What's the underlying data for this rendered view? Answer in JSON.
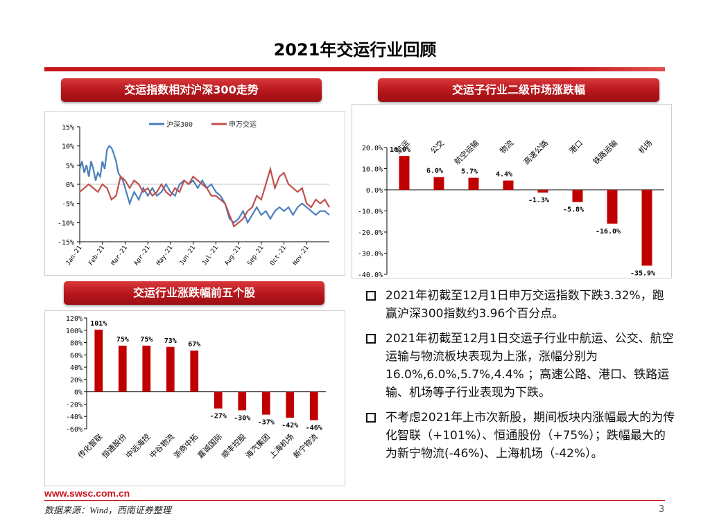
{
  "page": {
    "title": "2021年交运行业回顾",
    "footer_url": "www.swsc.com.cn",
    "footer_source": "数据来源：Wind，西南证券整理",
    "page_number": "3"
  },
  "sections": {
    "index_chart": "交运指数相对沪深300走势",
    "subindustry_chart": "交运子行业二级市场涨跌幅",
    "top_stocks_chart": "交运行业涨跌幅前五个股"
  },
  "bullets": [
    "2021年初截至12月1日申万交运指数下跌3.32%，跑赢沪深300指数约3.96个百分点。",
    "2021年初截至12月1日交运子行业中航运、公交、航空运输与物流板块表现为上涨，涨幅分别为16.0%,6.0%,5.7%,4.4% ；高速公路、港口、铁路运输、机场等子行业表现为下跌。",
    "不考虑2021年上市次新股，期间板块内涨幅最大的为传化智联（+101%）、恒通股份（+75%）；跌幅最大的为新宁物流(-46%)、上海机场（-42%）。"
  ],
  "colors": {
    "accent": "#c8161d",
    "bar": "#c00000",
    "series_hs300": "#4a7ebb",
    "series_sw": "#c0504d"
  },
  "chart_data": [
    {
      "id": "index",
      "type": "line",
      "title": "交运指数相对沪深300走势",
      "ylim": [
        -15,
        15
      ],
      "yticks": [
        15,
        10,
        5,
        0,
        -5,
        -10,
        -15
      ],
      "ytick_labels": [
        "15%",
        "10%",
        "5%",
        "0%",
        "-5%",
        "-10%",
        "-15%"
      ],
      "xtick_labels": [
        "Jan-21",
        "Feb-21",
        "Mar-21",
        "Apr-21",
        "May-21",
        "Jun-21",
        "Jul-21",
        "Aug-21",
        "Sep-21",
        "Oct-21",
        "Nov-21"
      ],
      "x_range": [
        0,
        11
      ],
      "legend_position": "top",
      "series": [
        {
          "name": "沪深300",
          "color": "#4a7ebb",
          "x": [
            0,
            0.1,
            0.2,
            0.3,
            0.4,
            0.5,
            0.6,
            0.7,
            0.8,
            0.9,
            1.0,
            1.1,
            1.2,
            1.3,
            1.4,
            1.5,
            1.6,
            1.7,
            1.8,
            1.9,
            2.0,
            2.1,
            2.2,
            2.4,
            2.6,
            2.8,
            3.0,
            3.2,
            3.4,
            3.6,
            3.8,
            4.0,
            4.2,
            4.4,
            4.6,
            4.8,
            5.0,
            5.2,
            5.4,
            5.6,
            5.8,
            6.0,
            6.2,
            6.4,
            6.6,
            6.8,
            7.0,
            7.2,
            7.4,
            7.6,
            7.8,
            8.0,
            8.2,
            8.4,
            8.6,
            8.8,
            9.0,
            9.2,
            9.4,
            9.6,
            9.8,
            10.0,
            10.2,
            10.4,
            10.6,
            10.8,
            11.0
          ],
          "y": [
            4,
            6,
            3,
            5,
            2,
            6,
            4,
            1,
            3,
            2,
            6,
            4,
            9,
            10,
            9.5,
            8,
            6,
            3,
            2,
            1,
            -1,
            -3,
            -5,
            -2,
            -4,
            -1,
            -3,
            -1,
            -3,
            -2,
            0,
            -2,
            -3,
            0,
            1,
            0,
            1,
            -1,
            1,
            -1,
            0,
            -2,
            -3,
            -5,
            -9,
            -10,
            -9,
            -7,
            -10,
            -8,
            -6,
            -8,
            -7,
            -9,
            -7,
            -6,
            -7,
            -6,
            -8,
            -6,
            -5,
            -6,
            -7,
            -8,
            -7,
            -7,
            -8
          ]
        },
        {
          "name": "申万交运",
          "color": "#c0504d",
          "x": [
            0,
            0.2,
            0.4,
            0.6,
            0.8,
            1.0,
            1.2,
            1.4,
            1.6,
            1.8,
            2.0,
            2.2,
            2.4,
            2.6,
            2.8,
            3.0,
            3.2,
            3.4,
            3.6,
            3.8,
            4.0,
            4.2,
            4.4,
            4.6,
            4.8,
            5.0,
            5.2,
            5.4,
            5.6,
            5.8,
            6.0,
            6.2,
            6.4,
            6.6,
            6.8,
            7.0,
            7.2,
            7.4,
            7.6,
            7.8,
            8.0,
            8.2,
            8.4,
            8.6,
            8.8,
            9.0,
            9.2,
            9.4,
            9.6,
            9.8,
            10.0,
            10.2,
            10.4,
            10.6,
            10.8,
            11.0
          ],
          "y": [
            -2,
            -1,
            0,
            -1,
            -2,
            0,
            -1,
            -4,
            -3,
            2,
            1,
            -1,
            1,
            0,
            -2,
            -1,
            -3,
            -2,
            0,
            -2,
            -3,
            -1,
            -2,
            1,
            0,
            2,
            1,
            0,
            -1,
            -3,
            -3,
            -4,
            -5,
            -8,
            -11,
            -10,
            -9,
            -7,
            -6,
            -3,
            -4,
            0,
            4,
            -1,
            2,
            3,
            0,
            -1,
            -2,
            -1,
            -5,
            -6,
            -4,
            -5,
            -4,
            -6
          ]
        }
      ]
    },
    {
      "id": "subindustry",
      "type": "bar",
      "title": "交运子行业二级市场涨跌幅",
      "categories": [
        "航运",
        "公交",
        "航空运输",
        "物流",
        "高速公路",
        "港口",
        "铁路运输",
        "机场"
      ],
      "values": [
        16.0,
        6.0,
        5.7,
        4.4,
        -1.3,
        -5.8,
        -16.0,
        -35.9
      ],
      "data_labels": [
        "16.0%",
        "6.0%",
        "5.7%",
        "4.4%",
        "-1.3%",
        "-5.8%",
        "-16.0%",
        "-35.9%"
      ],
      "ylim": [
        -40,
        20
      ],
      "yticks": [
        20,
        10,
        0,
        -10,
        -20,
        -30,
        -40
      ],
      "ytick_labels": [
        "20.0%",
        "10.0%",
        "0.0%",
        "-10.0%",
        "-20.0%",
        "-30.0%",
        "-40.0%"
      ]
    },
    {
      "id": "top_stocks",
      "type": "bar",
      "title": "交运行业涨跌幅前五个股",
      "categories": [
        "传化智联",
        "恒通股份",
        "中远海控",
        "中谷物流",
        "浙商中拓",
        "嘉诚国际",
        "顺丰控股",
        "海汽集团",
        "上海机场",
        "新宁物流"
      ],
      "values": [
        101,
        75,
        75,
        73,
        67,
        -27,
        -30,
        -37,
        -42,
        -46
      ],
      "data_labels": [
        "101%",
        "75%",
        "75%",
        "73%",
        "67%",
        "-27%",
        "-30%",
        "-37%",
        "-42%",
        "-46%"
      ],
      "ylim": [
        -60,
        120
      ],
      "yticks": [
        120,
        100,
        80,
        60,
        40,
        20,
        0,
        -20,
        -40,
        -60
      ],
      "ytick_labels": [
        "120%",
        "100%",
        "80%",
        "60%",
        "40%",
        "20%",
        "0%",
        "-20%",
        "-40%",
        "-60%"
      ]
    }
  ]
}
